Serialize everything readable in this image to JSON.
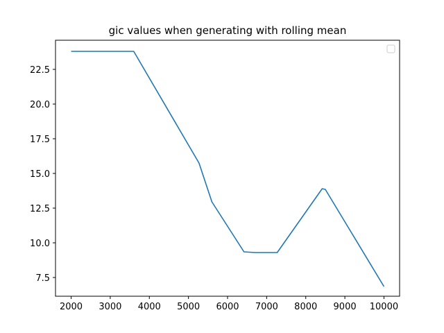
{
  "chart_data": {
    "type": "line",
    "title": "gic values when generating with rolling mean",
    "xlabel": "",
    "ylabel": "",
    "xlim": [
      1600,
      10400
    ],
    "ylim": [
      6.15,
      24.6
    ],
    "x_ticks": [
      2000,
      3000,
      4000,
      5000,
      6000,
      7000,
      8000,
      9000,
      10000
    ],
    "y_ticks": [
      7.5,
      10.0,
      12.5,
      15.0,
      17.5,
      20.0,
      22.5
    ],
    "x_tick_labels": [
      "2000",
      "3000",
      "4000",
      "5000",
      "6000",
      "7000",
      "8000",
      "9000",
      "10000"
    ],
    "y_tick_labels": [
      "7.5",
      "10.0",
      "12.5",
      "15.0",
      "17.5",
      "20.0",
      "22.5"
    ],
    "grid": false,
    "legend": {
      "placement": "upper-right",
      "entries": []
    },
    "series": [
      {
        "color": "#1f77b4",
        "x": [
          2000,
          3600,
          5270,
          5600,
          6420,
          6700,
          7270,
          8420,
          8500,
          10000
        ],
        "y": [
          23.8,
          23.8,
          15.75,
          12.95,
          9.35,
          9.3,
          9.3,
          13.9,
          13.85,
          6.85
        ]
      }
    ]
  }
}
